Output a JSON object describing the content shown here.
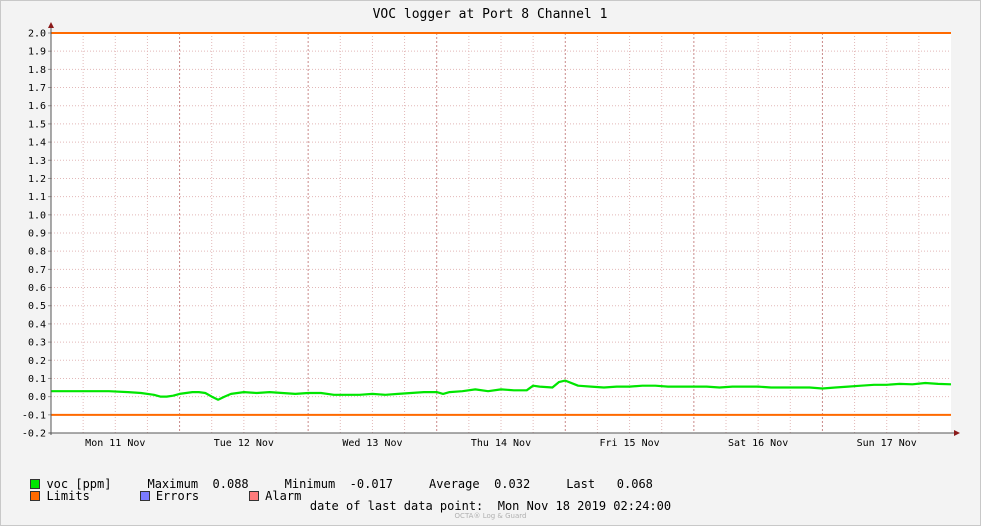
{
  "chart_data": {
    "type": "line",
    "title": "VOC logger at Port 8 Channel 1",
    "ylim": [
      -0.2,
      2.0
    ],
    "yticks": [
      -0.2,
      -0.1,
      0.0,
      0.1,
      0.2,
      0.3,
      0.4,
      0.5,
      0.6,
      0.7,
      0.8,
      0.9,
      1.0,
      1.1,
      1.2,
      1.3,
      1.4,
      1.5,
      1.6,
      1.7,
      1.8,
      1.9,
      2.0
    ],
    "xlim": [
      0,
      7
    ],
    "day_labels": [
      "Mon 11 Nov",
      "Tue 12 Nov",
      "Wed 13 Nov",
      "Thu 14 Nov",
      "Fri 15 Nov",
      "Sat 16 Nov",
      "Sun 17 Nov"
    ],
    "limits": [
      2.0,
      -0.1
    ],
    "series": [
      {
        "name": "voc [ppm]",
        "color": "#00e600",
        "x": [
          0.0,
          0.3,
          0.45,
          0.6,
          0.7,
          0.8,
          0.85,
          0.9,
          0.95,
          1.0,
          1.05,
          1.1,
          1.15,
          1.2,
          1.25,
          1.3,
          1.35,
          1.4,
          1.5,
          1.6,
          1.7,
          1.8,
          1.9,
          2.0,
          2.1,
          2.2,
          2.3,
          2.4,
          2.5,
          2.6,
          2.7,
          2.8,
          2.9,
          3.0,
          3.05,
          3.1,
          3.2,
          3.3,
          3.4,
          3.5,
          3.6,
          3.7,
          3.75,
          3.8,
          3.9,
          3.95,
          4.0,
          4.1,
          4.2,
          4.3,
          4.4,
          4.5,
          4.6,
          4.7,
          4.8,
          4.9,
          5.0,
          5.1,
          5.2,
          5.3,
          5.4,
          5.5,
          5.6,
          5.7,
          5.8,
          5.9,
          6.0,
          6.1,
          6.2,
          6.3,
          6.4,
          6.5,
          6.6,
          6.7,
          6.8,
          6.9,
          7.0
        ],
        "values": [
          0.03,
          0.03,
          0.03,
          0.025,
          0.02,
          0.01,
          0.0,
          0.0,
          0.005,
          0.015,
          0.02,
          0.025,
          0.025,
          0.02,
          0.0,
          -0.017,
          0.0,
          0.015,
          0.025,
          0.02,
          0.025,
          0.02,
          0.015,
          0.02,
          0.02,
          0.01,
          0.01,
          0.01,
          0.015,
          0.01,
          0.015,
          0.02,
          0.025,
          0.025,
          0.015,
          0.025,
          0.03,
          0.04,
          0.03,
          0.04,
          0.035,
          0.035,
          0.06,
          0.055,
          0.05,
          0.08,
          0.088,
          0.06,
          0.055,
          0.05,
          0.055,
          0.055,
          0.06,
          0.06,
          0.055,
          0.055,
          0.055,
          0.055,
          0.05,
          0.055,
          0.055,
          0.055,
          0.05,
          0.05,
          0.05,
          0.05,
          0.045,
          0.05,
          0.055,
          0.06,
          0.065,
          0.065,
          0.07,
          0.068,
          0.075,
          0.07,
          0.068
        ]
      }
    ]
  },
  "legend": {
    "voc_label": "voc [ppm]",
    "max_label": "Maximum",
    "max_value": "0.088",
    "min_label": "Minimum",
    "min_value": "-0.017",
    "avg_label": "Average",
    "avg_value": "0.032",
    "last_label": "Last",
    "last_value": "0.068",
    "limits_label": "Limits",
    "errors_label": "Errors",
    "alarm_label": "Alarm"
  },
  "colors": {
    "voc": "#00e600",
    "limits": "#ff6a00",
    "errors": "#7b7bff",
    "alarm": "#ff7b7b",
    "grid_minor": "#e2b8b8",
    "grid_major": "#c98a8a"
  },
  "footer": {
    "last_point": "date of last data point:  Mon Nov 18 2019 02:24:00",
    "brand": "OCTA® Log & Guard"
  }
}
